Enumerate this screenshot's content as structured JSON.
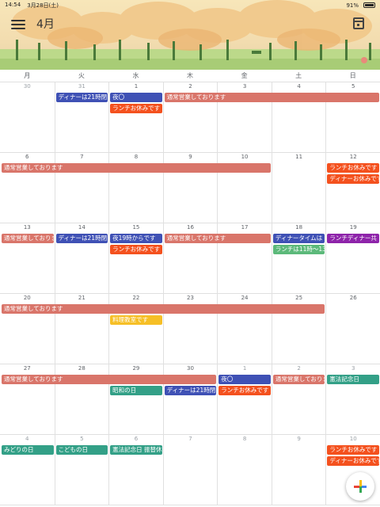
{
  "status_bar": {
    "time": "14:54",
    "date": "3月28日(土)",
    "battery": "91%"
  },
  "header": {
    "month_title": "4月"
  },
  "weekdays": [
    "月",
    "火",
    "水",
    "木",
    "金",
    "土",
    "日"
  ],
  "colors": {
    "salmon": "#d9756a",
    "blue": "#3f51b5",
    "orange": "#f4511e",
    "teal": "#33a087",
    "green": "#5cb97a",
    "purple": "#8e24aa",
    "yellow": "#f6bf26"
  },
  "weeks": [
    {
      "days": [
        {
          "label": "30",
          "other": true
        },
        {
          "label": "31",
          "other": true
        },
        {
          "label": "1"
        },
        {
          "label": "2"
        },
        {
          "label": "3"
        },
        {
          "label": "4"
        },
        {
          "label": "5"
        }
      ],
      "events": [
        {
          "title": "ディナーは21時閉",
          "start": 1,
          "span": 1,
          "row": 0,
          "color": "blue"
        },
        {
          "title": "夜〇",
          "start": 2,
          "span": 1,
          "row": 0,
          "color": "blue"
        },
        {
          "title": "通常営業しております",
          "start": 3,
          "span": 4,
          "row": 0,
          "color": "salmon"
        },
        {
          "title": "ランチお休みです",
          "start": 2,
          "span": 1,
          "row": 1,
          "color": "orange"
        }
      ]
    },
    {
      "days": [
        {
          "label": "6"
        },
        {
          "label": "7"
        },
        {
          "label": "8"
        },
        {
          "label": "9"
        },
        {
          "label": "10"
        },
        {
          "label": "11"
        },
        {
          "label": "12"
        }
      ],
      "events": [
        {
          "title": "通常営業しております",
          "start": 0,
          "span": 5,
          "row": 0,
          "color": "salmon"
        },
        {
          "title": "ランチお休みです",
          "start": 6,
          "span": 1,
          "row": 0,
          "color": "orange"
        },
        {
          "title": "ディナーお休みです",
          "start": 6,
          "span": 1,
          "row": 1,
          "color": "orange"
        }
      ]
    },
    {
      "days": [
        {
          "label": "13"
        },
        {
          "label": "14"
        },
        {
          "label": "15"
        },
        {
          "label": "16"
        },
        {
          "label": "17"
        },
        {
          "label": "18"
        },
        {
          "label": "19"
        }
      ],
      "events": [
        {
          "title": "通常営業しておりま",
          "start": 0,
          "span": 1,
          "row": 0,
          "color": "salmon"
        },
        {
          "title": "ディナーは21時閉",
          "start": 1,
          "span": 1,
          "row": 0,
          "color": "blue"
        },
        {
          "title": "夜19時からです",
          "start": 2,
          "span": 1,
          "row": 0,
          "color": "blue"
        },
        {
          "title": "通常営業しております",
          "start": 3,
          "span": 2,
          "row": 0,
          "color": "salmon"
        },
        {
          "title": "ディナータイムは",
          "start": 5,
          "span": 1,
          "row": 0,
          "color": "blue"
        },
        {
          "title": "ランチディナー共",
          "start": 6,
          "span": 1,
          "row": 0,
          "color": "purple"
        },
        {
          "title": "ランチお休みです",
          "start": 2,
          "span": 1,
          "row": 1,
          "color": "orange"
        },
        {
          "title": "ランチは11時〜13",
          "start": 5,
          "span": 1,
          "row": 1,
          "color": "green"
        }
      ]
    },
    {
      "days": [
        {
          "label": "20"
        },
        {
          "label": "21"
        },
        {
          "label": "22"
        },
        {
          "label": "23"
        },
        {
          "label": "24"
        },
        {
          "label": "25"
        },
        {
          "label": "26"
        }
      ],
      "events": [
        {
          "title": "通常営業しております",
          "start": 0,
          "span": 6,
          "row": 0,
          "color": "salmon"
        },
        {
          "title": "料理教室です",
          "start": 2,
          "span": 1,
          "row": 1,
          "color": "yellow"
        }
      ]
    },
    {
      "days": [
        {
          "label": "27"
        },
        {
          "label": "28"
        },
        {
          "label": "29"
        },
        {
          "label": "30"
        },
        {
          "label": "1",
          "other": true
        },
        {
          "label": "2",
          "other": true
        },
        {
          "label": "3",
          "other": true
        }
      ],
      "events": [
        {
          "title": "通常営業しております",
          "start": 0,
          "span": 4,
          "row": 0,
          "color": "salmon"
        },
        {
          "title": "夜〇",
          "start": 4,
          "span": 1,
          "row": 0,
          "color": "blue"
        },
        {
          "title": "通常営業しておりま",
          "start": 5,
          "span": 1,
          "row": 0,
          "color": "salmon"
        },
        {
          "title": "憲法記念日",
          "start": 6,
          "span": 1,
          "row": 0,
          "color": "teal"
        },
        {
          "title": "昭和の日",
          "start": 2,
          "span": 1,
          "row": 1,
          "color": "teal"
        },
        {
          "title": "ディナーは21時閉",
          "start": 3,
          "span": 1,
          "row": 1,
          "color": "blue"
        },
        {
          "title": "ランチお休みです",
          "start": 4,
          "span": 1,
          "row": 1,
          "color": "orange"
        }
      ]
    },
    {
      "days": [
        {
          "label": "4",
          "other": true
        },
        {
          "label": "5",
          "other": true
        },
        {
          "label": "6",
          "other": true
        },
        {
          "label": "7",
          "other": true
        },
        {
          "label": "8",
          "other": true
        },
        {
          "label": "9",
          "other": true
        },
        {
          "label": "10",
          "other": true
        }
      ],
      "events": [
        {
          "title": "みどりの日",
          "start": 0,
          "span": 1,
          "row": 0,
          "color": "teal"
        },
        {
          "title": "こどもの日",
          "start": 1,
          "span": 1,
          "row": 0,
          "color": "teal"
        },
        {
          "title": "憲法記念日 振替休",
          "start": 2,
          "span": 1,
          "row": 0,
          "color": "teal"
        },
        {
          "title": "ランチお休みです",
          "start": 6,
          "span": 1,
          "row": 0,
          "color": "orange"
        },
        {
          "title": "ディナーお休みです",
          "start": 6,
          "span": 1,
          "row": 1,
          "color": "orange"
        }
      ]
    }
  ]
}
